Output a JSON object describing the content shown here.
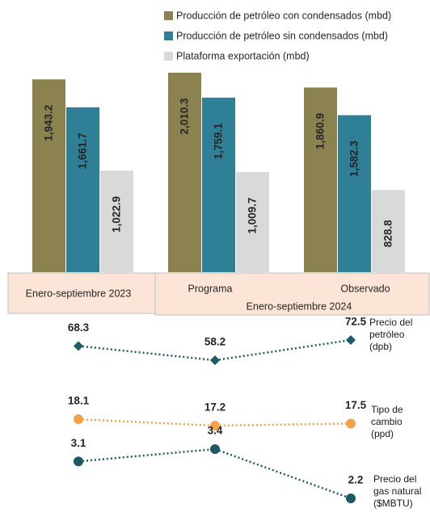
{
  "chart_data": [
    {
      "type": "bar",
      "categories": [
        "Enero-septiembre 2023",
        "Programa",
        "Observado"
      ],
      "group_label": "Enero-septiembre  2024",
      "series": [
        {
          "name": "Producción de petróleo con condensados (mbd)",
          "color": "#8c8250",
          "values": [
            1943.2,
            2010.3,
            1860.9
          ],
          "value_labels": [
            "1,943.2",
            "2,010.3",
            "1,860.9"
          ]
        },
        {
          "name": "Producción de petróleo sin condensados (mbd)",
          "color": "#2f7f96",
          "values": [
            1661.7,
            1759.1,
            1582.3
          ],
          "value_labels": [
            "1,661.7",
            "1,759.1",
            "1,582.3"
          ]
        },
        {
          "name": "Plataforma exportación (mbd)",
          "color": "#d9d9d9",
          "values": [
            1022.9,
            1009.7,
            828.8
          ],
          "value_labels": [
            "1,022.9",
            "1,009.7",
            "828.8"
          ]
        }
      ]
    },
    {
      "type": "line",
      "series": [
        {
          "name": "Precio del petróleo (dpb)",
          "color": "#1e5d68",
          "marker": "diamond",
          "values": [
            68.3,
            58.2,
            72.5
          ]
        }
      ]
    },
    {
      "type": "line",
      "series": [
        {
          "name": "Tipo de cambio (ppd)",
          "color": "#f4a14b",
          "marker": "circle",
          "values": [
            18.1,
            17.2,
            17.5
          ]
        }
      ]
    },
    {
      "type": "line",
      "series": [
        {
          "name": "Precio del gas natural ($MBTU)",
          "color": "#1e5a66",
          "marker": "circle",
          "values": [
            3.1,
            3.4,
            2.2
          ]
        }
      ]
    }
  ]
}
